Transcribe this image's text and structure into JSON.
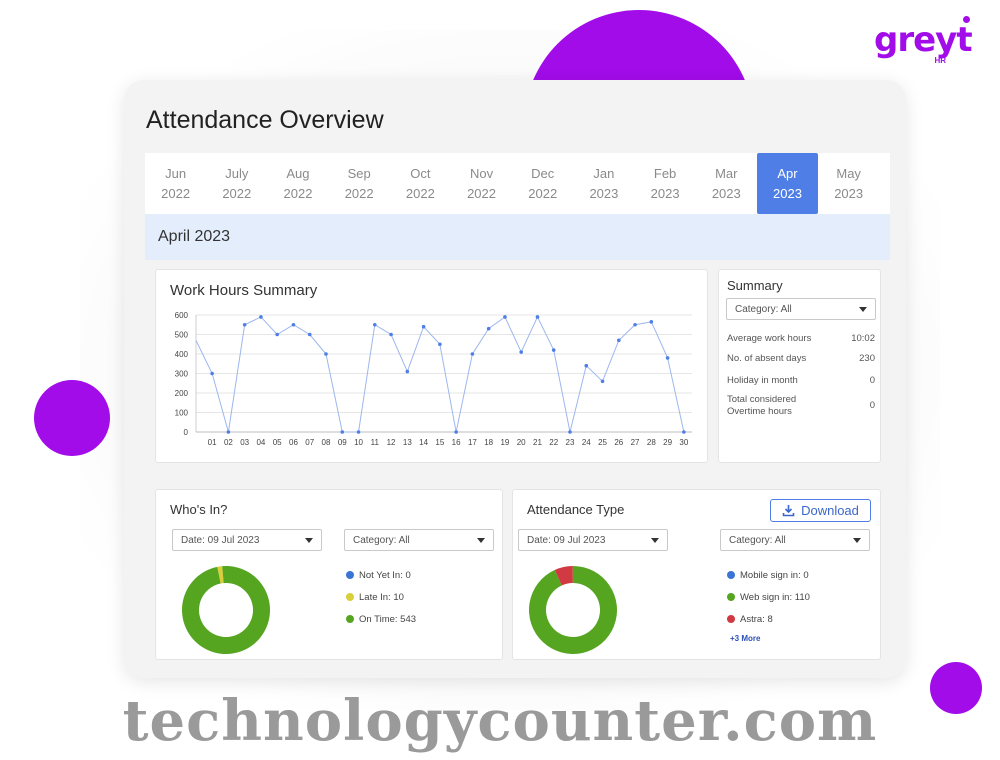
{
  "logo": {
    "text": "greyt",
    "sub": "HR"
  },
  "page": {
    "title": "Attendance Overview"
  },
  "months": [
    {
      "m": "Jun",
      "y": "2022"
    },
    {
      "m": "July",
      "y": "2022"
    },
    {
      "m": "Aug",
      "y": "2022"
    },
    {
      "m": "Sep",
      "y": "2022"
    },
    {
      "m": "Oct",
      "y": "2022"
    },
    {
      "m": "Nov",
      "y": "2022"
    },
    {
      "m": "Dec",
      "y": "2022"
    },
    {
      "m": "Jan",
      "y": "2023"
    },
    {
      "m": "Feb",
      "y": "2023"
    },
    {
      "m": "Mar",
      "y": "2023"
    },
    {
      "m": "Apr",
      "y": "2023",
      "active": true
    },
    {
      "m": "May",
      "y": "2023"
    }
  ],
  "selected_month": "April 2023",
  "work_hours": {
    "title": "Work Hours Summary"
  },
  "chart_data": {
    "type": "line",
    "title": "Work Hours Summary",
    "x": [
      "01",
      "02",
      "03",
      "04",
      "05",
      "06",
      "07",
      "08",
      "09",
      "10",
      "11",
      "12",
      "13",
      "14",
      "15",
      "16",
      "17",
      "18",
      "19",
      "20",
      "21",
      "22",
      "23",
      "24",
      "25",
      "26",
      "27",
      "28",
      "29",
      "30"
    ],
    "values": [
      300,
      0,
      550,
      590,
      500,
      550,
      500,
      400,
      0,
      0,
      550,
      500,
      310,
      540,
      450,
      0,
      400,
      530,
      590,
      410,
      590,
      420,
      0,
      340,
      260,
      470,
      550,
      565,
      380,
      0
    ],
    "y_ticks": [
      0,
      100,
      200,
      300,
      400,
      500,
      600
    ],
    "ylim": [
      0,
      600
    ],
    "start_value": 470,
    "grid": true,
    "color": "#4f7fe6"
  },
  "summary": {
    "title": "Summary",
    "category": "Category: All",
    "rows": [
      {
        "label": "Average work hours",
        "value": "10:02"
      },
      {
        "label": "No. of absent days",
        "value": "230"
      },
      {
        "label": "Holiday in month",
        "value": "0"
      },
      {
        "label": "Total considered Overtime hours",
        "value": "0"
      }
    ]
  },
  "whos_in": {
    "title": "Who's In?",
    "date": "Date: 09 Jul 2023",
    "category": "Category: All",
    "legend": [
      {
        "label": "Not Yet In: 0",
        "color": "#3a75d6",
        "value": 0
      },
      {
        "label": "Late In: 10",
        "color": "#d9cf3a",
        "value": 10
      },
      {
        "label": "On Time: 543",
        "color": "#56a521",
        "value": 543
      }
    ]
  },
  "attendance_type": {
    "title": "Attendance Type",
    "download": "Download",
    "date": "Date: 09 Jul 2023",
    "category": "Category: All",
    "legend": [
      {
        "label": "Mobile sign in: 0",
        "color": "#3a75d6",
        "value": 0
      },
      {
        "label": "Web sign in: 110",
        "color": "#56a521",
        "value": 110
      },
      {
        "label": "Astra: 8",
        "color": "#d13a42",
        "value": 8
      }
    ],
    "more": "+3 More"
  },
  "watermark": "technologycounter.com"
}
